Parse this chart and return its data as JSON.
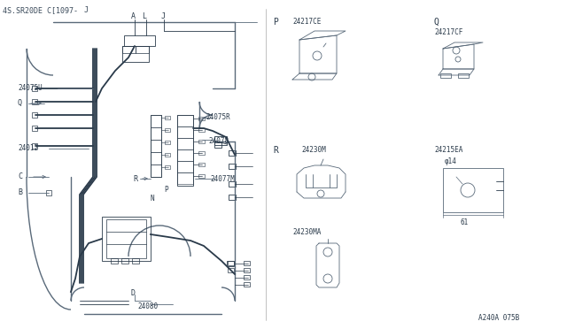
{
  "bg_color": "#ffffff",
  "line_color": "#5a6a7a",
  "thick_line_color": "#2a3a4a",
  "title": "4S.SR20DE C[1097-",
  "title_j": "J",
  "footer": "A240A 075B",
  "figsize": [
    6.4,
    3.72
  ],
  "dpi": 100
}
